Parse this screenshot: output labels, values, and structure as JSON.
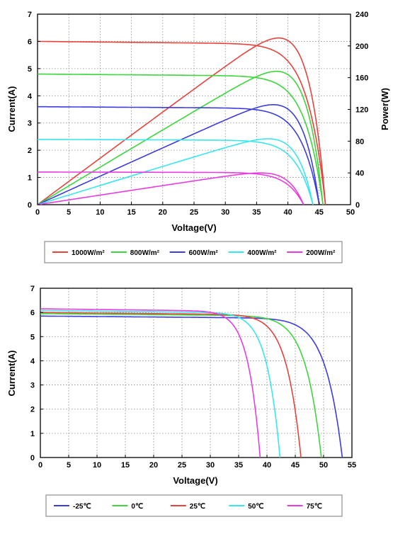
{
  "chart_data": [
    {
      "type": "line",
      "title": "",
      "xlabel": "Voltage(V)",
      "ylabel": "Current(A)",
      "y2label": "Power(W)",
      "xlim": [
        0,
        50
      ],
      "ylim": [
        0,
        7
      ],
      "y2lim": [
        0,
        240
      ],
      "xticks": [
        "0",
        "5",
        "10",
        "15",
        "20",
        "25",
        "30",
        "35",
        "40",
        "45",
        "50"
      ],
      "yticks": [
        "0",
        "1",
        "2",
        "3",
        "4",
        "5",
        "6",
        "7"
      ],
      "y2ticks": [
        "0",
        "40",
        "80",
        "120",
        "160",
        "200",
        "240"
      ],
      "grid": true,
      "legend_position": "bottom",
      "series": [
        {
          "name": "1000W/m²",
          "color": "#e8423c",
          "isc": 6.0,
          "voc": 46.0,
          "pmax": 210,
          "vmp": 37.5
        },
        {
          "name": "800W/m²",
          "color": "#3cd63c",
          "isc": 4.8,
          "voc": 45.6,
          "pmax": 168,
          "vmp": 37.5
        },
        {
          "name": "600W/m²",
          "color": "#3c3ce0",
          "isc": 3.6,
          "voc": 45.0,
          "pmax": 126,
          "vmp": 37.5
        },
        {
          "name": "400W/m²",
          "color": "#38e6ee",
          "isc": 2.4,
          "voc": 44.0,
          "pmax": 83,
          "vmp": 37.0
        },
        {
          "name": "200W/m²",
          "color": "#e83ce0",
          "isc": 1.2,
          "voc": 42.5,
          "pmax": 40,
          "vmp": 35.5
        }
      ]
    },
    {
      "type": "line",
      "title": "",
      "xlabel": "Voltage(V)",
      "ylabel": "Current(A)",
      "xlim": [
        0,
        55
      ],
      "ylim": [
        0,
        7
      ],
      "xticks": [
        "0",
        "5",
        "10",
        "15",
        "20",
        "25",
        "30",
        "35",
        "40",
        "45",
        "50",
        "55"
      ],
      "yticks": [
        "0",
        "1",
        "2",
        "3",
        "4",
        "5",
        "6",
        "7"
      ],
      "grid": true,
      "legend_position": "bottom",
      "series": [
        {
          "name": "-25℃",
          "color": "#3c3ce0",
          "isc": 5.85,
          "voc": 53.3
        },
        {
          "name": "0℃",
          "color": "#3cd63c",
          "isc": 5.95,
          "voc": 49.6
        },
        {
          "name": "25℃",
          "color": "#e8423c",
          "isc": 6.0,
          "voc": 46.0
        },
        {
          "name": "50℃",
          "color": "#38e6ee",
          "isc": 6.08,
          "voc": 42.3
        },
        {
          "name": "75℃",
          "color": "#e83ce0",
          "isc": 6.15,
          "voc": 38.8
        }
      ]
    }
  ]
}
